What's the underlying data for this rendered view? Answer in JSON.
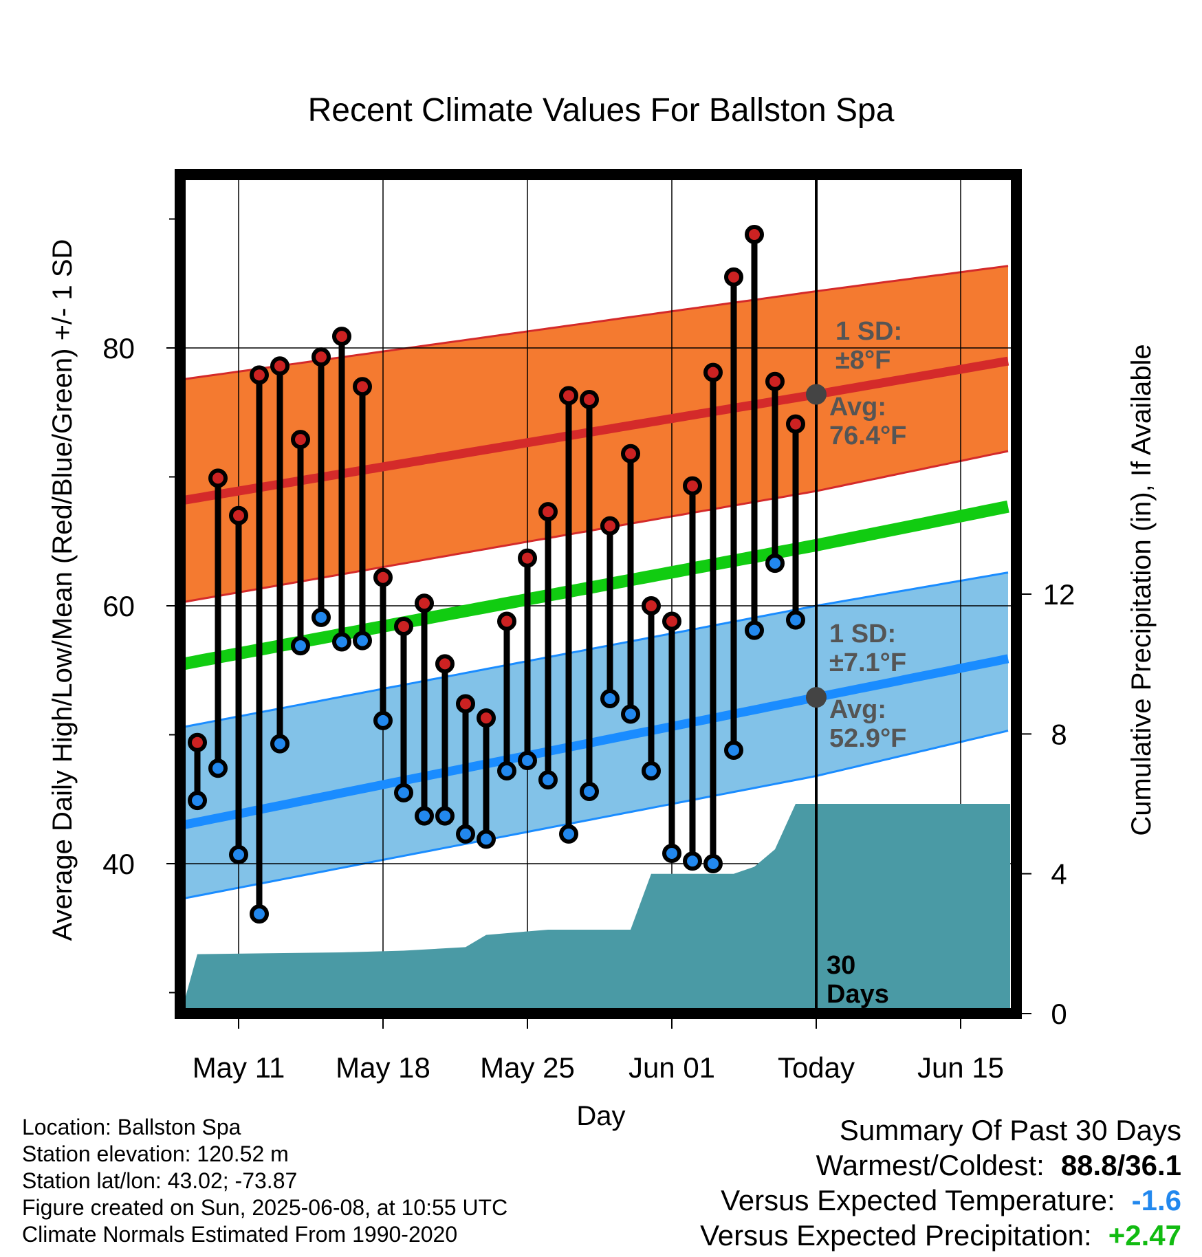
{
  "chart_data": {
    "type": "line",
    "title": "Recent Climate Values For Ballston Spa",
    "xlabel": "Day",
    "ylabel": "Average Daily High/Low/Mean (Red/Blue/Green) +/- 1 SD",
    "y2label": "Cumulative Precipitation (in), If Available",
    "x_ticks": [
      {
        "day": 11,
        "label": "May 11"
      },
      {
        "day": 18,
        "label": "May 18"
      },
      {
        "day": 25,
        "label": "May 25"
      },
      {
        "day": 32,
        "label": "Jun 01"
      },
      {
        "day": 39,
        "label": "Today"
      },
      {
        "day": 46,
        "label": "Jun 15"
      }
    ],
    "xlim": [
      7.8,
      48.4
    ],
    "ylim": [
      28.7,
      94.5
    ],
    "y_ticks": [
      40,
      60,
      80
    ],
    "y_minor_ticks": [
      30,
      50,
      70,
      90
    ],
    "y2lim": [
      0,
      24
    ],
    "y2_ticks": [
      0,
      4,
      8,
      12
    ],
    "today_day": 39,
    "days_label": "30\nDays",
    "normals": {
      "day": [
        8,
        39,
        48
      ],
      "high_mean": [
        68.1,
        76.4,
        78.9
      ],
      "high_upper": [
        77.5,
        84.4,
        86.3
      ],
      "high_lower": [
        60.2,
        68.9,
        71.9
      ],
      "mean": [
        55.4,
        64.7,
        67.6
      ],
      "low_mean": [
        42.9,
        52.9,
        55.8
      ],
      "low_upper": [
        50.5,
        60.0,
        62.5
      ],
      "low_lower": [
        37.2,
        46.8,
        50.2
      ]
    },
    "high_sd_label": "1 SD:\n±8°F",
    "high_avg_label": "Avg:\n76.4°F",
    "low_sd_label": "1 SD:\n±7.1°F",
    "low_avg_label": "Avg:\n52.9°F",
    "daily": {
      "day": [
        9,
        10,
        11,
        12,
        13,
        14,
        15,
        16,
        17,
        18,
        19,
        20,
        21,
        22,
        23,
        24,
        25,
        26,
        27,
        28,
        29,
        30,
        31,
        32,
        33,
        34,
        35,
        36,
        37,
        38
      ],
      "high": [
        49.4,
        69.9,
        67.0,
        77.9,
        78.6,
        72.9,
        79.3,
        80.9,
        77.0,
        62.2,
        58.4,
        60.2,
        55.5,
        52.4,
        51.3,
        58.8,
        63.7,
        67.3,
        76.3,
        76.0,
        66.2,
        71.8,
        60.0,
        58.8,
        69.3,
        78.1,
        85.5,
        88.8,
        77.4,
        74.1
      ],
      "low": [
        44.9,
        47.4,
        40.7,
        36.1,
        49.3,
        56.9,
        59.1,
        57.2,
        57.3,
        51.1,
        45.5,
        43.7,
        43.7,
        42.3,
        41.9,
        47.2,
        48.0,
        46.5,
        42.3,
        45.6,
        52.8,
        51.6,
        47.2,
        40.8,
        40.2,
        40.0,
        48.8,
        58.1,
        63.3,
        58.9
      ]
    },
    "precip": {
      "day": [
        7.8,
        8.2,
        9.0,
        16.0,
        19.0,
        22.0,
        23.0,
        25.0,
        26.0,
        30.0,
        31.0,
        35.0,
        36.0,
        37.0,
        38.0,
        39.0,
        48.4
      ],
      "cum": [
        0.0,
        0.0,
        1.7,
        1.75,
        1.8,
        1.9,
        2.25,
        2.35,
        2.4,
        2.4,
        4.0,
        4.0,
        4.2,
        4.7,
        6.0,
        6.0,
        6.0
      ]
    },
    "grid": true
  },
  "info": {
    "location": "Location: Ballston Spa",
    "elevation": "Station elevation: 120.52 m",
    "latlon": "Station lat/lon: 43.02; -73.87",
    "created": "Figure created on Sun, 2025-06-08, at 10:55 UTC",
    "normals_note": "Climate Normals Estimated From 1990-2020"
  },
  "summary": {
    "title": "Summary Of Past 30 Days",
    "warm_cold_label": "Warmest/Coldest:",
    "warm_cold_value": "88.8/36.1",
    "temp_label": "Versus Expected Temperature:",
    "temp_value": "-1.6",
    "precip_label": "Versus Expected Precipitation:",
    "precip_value": "+2.47"
  },
  "colors": {
    "high_band": "#f47a30",
    "high_line": "#d42a2a",
    "mean_line": "#11cc11",
    "low_band": "#82c2e8",
    "low_line": "#1a8cff",
    "low_band_edge": "#1a8cff",
    "precip": "#4a9aa5",
    "high_dot": "#cc2222",
    "low_dot": "#2288ee",
    "avg_dot": "#444444",
    "temp_value": "#2288ee",
    "precip_value": "#11bb11"
  }
}
